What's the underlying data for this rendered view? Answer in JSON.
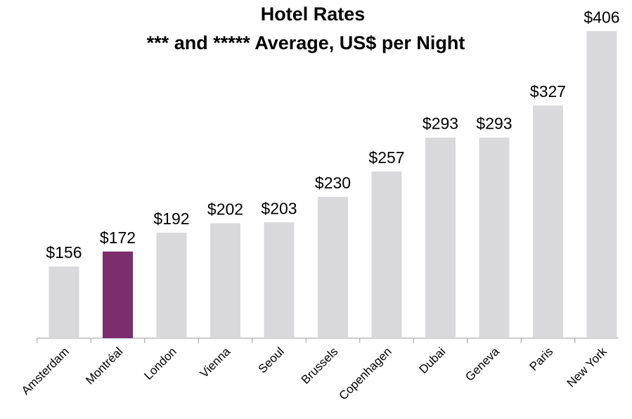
{
  "chart_data": {
    "type": "bar",
    "title": [
      "Hotel Rates",
      "*** and ***** Average, US$ per Night"
    ],
    "categories": [
      "Amsterdam",
      "Montréal",
      "London",
      "Vienna",
      "Seoul",
      "Brussels",
      "Copenhagen",
      "Dubai",
      "Geneva",
      "Paris",
      "New York"
    ],
    "values": [
      156,
      172,
      192,
      202,
      203,
      230,
      257,
      293,
      293,
      327,
      406
    ],
    "value_labels": [
      "$156",
      "$172",
      "$192",
      "$202",
      "$203",
      "$230",
      "$257",
      "$293",
      "$293",
      "$327",
      "$406"
    ],
    "colors": [
      "#d9d9db",
      "#7b2d6e",
      "#d9d9db",
      "#d9d9db",
      "#d9d9db",
      "#d9d9db",
      "#d9d9db",
      "#d9d9db",
      "#d9d9db",
      "#d9d9db",
      "#d9d9db"
    ],
    "ylim": [
      80,
      410
    ]
  }
}
